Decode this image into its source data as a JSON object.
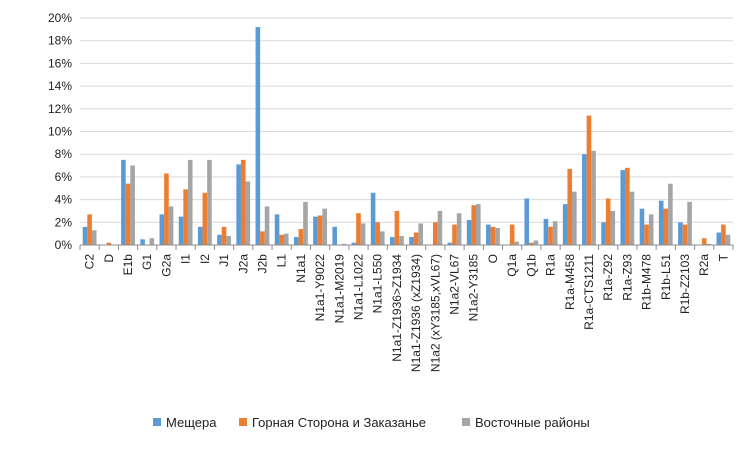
{
  "chart_data": {
    "type": "bar",
    "title": "",
    "xlabel": "",
    "ylabel": "",
    "ylim": [
      0,
      20
    ],
    "y_ticks": [
      "0%",
      "2%",
      "4%",
      "6%",
      "8%",
      "10%",
      "12%",
      "14%",
      "16%",
      "18%",
      "20%"
    ],
    "grid": true,
    "legend_position": "bottom",
    "categories": [
      "C2",
      "D",
      "E1b",
      "G1",
      "G2a",
      "I1",
      "I2",
      "J1",
      "J2a",
      "J2b",
      "L1",
      "N1a1",
      "N1a1-Y9022",
      "N1a1-M2019",
      "N1a1-L1022",
      "N1a1-L550",
      "N1a1-Z1936>Z1934",
      "N1a1-Z1936 (xZ1934)",
      "N1a2 (xY3185,xVL67)",
      "N1a2-VL67",
      "N1a2-Y3185",
      "O",
      "Q1a",
      "Q1b",
      "R1a",
      "R1a-M458",
      "R1a-CTS1211",
      "R1a-Z92",
      "R1a-Z93",
      "R1b-M478",
      "R1b-L51",
      "R1b-Z2103",
      "R2a",
      "T"
    ],
    "series": [
      {
        "name": "Мещера",
        "color": "#5b9bd5",
        "values": [
          1.6,
          0.0,
          7.5,
          0.5,
          2.7,
          2.5,
          1.6,
          0.9,
          7.1,
          19.2,
          2.7,
          0.7,
          2.5,
          1.6,
          0.2,
          4.6,
          0.7,
          0.7,
          0.0,
          0.2,
          2.2,
          1.8,
          0.0,
          4.1,
          2.3,
          3.6,
          8.0,
          2.0,
          6.6,
          3.2,
          3.9,
          2.0,
          0.0,
          1.1
        ]
      },
      {
        "name": "Горная Сторона и Заказанье",
        "color": "#ed7d31",
        "values": [
          2.7,
          0.2,
          5.4,
          0.0,
          6.3,
          4.9,
          4.6,
          1.6,
          7.5,
          1.2,
          0.9,
          1.4,
          2.6,
          0.0,
          2.8,
          2.0,
          3.0,
          1.1,
          2.0,
          1.8,
          3.5,
          1.6,
          1.8,
          0.2,
          1.6,
          6.7,
          11.4,
          4.1,
          6.8,
          1.8,
          3.2,
          1.8,
          0.6,
          1.8
        ]
      },
      {
        "name": "Восточные районы",
        "color": "#a5a5a5",
        "values": [
          1.3,
          0.0,
          7.0,
          0.6,
          3.4,
          7.5,
          7.5,
          0.8,
          5.6,
          3.4,
          1.0,
          3.8,
          3.2,
          0.1,
          1.9,
          1.2,
          0.8,
          1.9,
          3.0,
          2.8,
          3.6,
          1.5,
          0.3,
          0.4,
          2.1,
          4.7,
          8.3,
          3.0,
          4.7,
          2.7,
          5.4,
          3.8,
          0.1,
          0.9
        ]
      }
    ]
  }
}
